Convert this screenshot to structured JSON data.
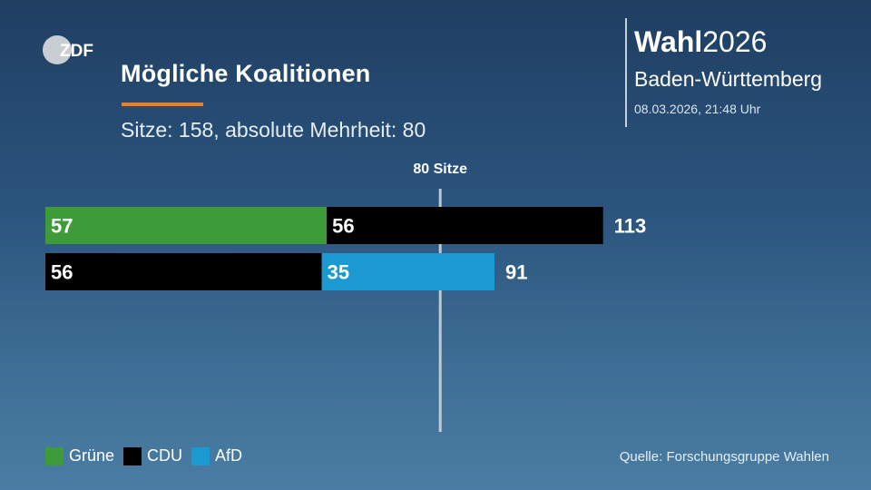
{
  "header": {
    "title": "Mögliche Koalitionen",
    "subtitle": "Sitze: 158, absolute Mehrheit: 80",
    "logo_text": "ZDF"
  },
  "election": {
    "wahl_bold": "Wahl",
    "wahl_year": "2026",
    "region": "Baden-Württemberg",
    "timestamp": "08.03.2026, 21:48 Uhr"
  },
  "colors": {
    "Grüne": "#3e9b3a",
    "CDU": "#000000",
    "AfD": "#1a9ad1",
    "accent": "#f07d1f"
  },
  "chart_data": {
    "type": "bar",
    "orientation": "horizontal",
    "stacked": true,
    "threshold": {
      "value": 80,
      "label": "80 Sitze"
    },
    "xlim": [
      0,
      158
    ],
    "rows": [
      {
        "segments": [
          {
            "party": "Grüne",
            "value": 57
          },
          {
            "party": "CDU",
            "value": 56
          }
        ],
        "total": 113
      },
      {
        "segments": [
          {
            "party": "CDU",
            "value": 56
          },
          {
            "party": "AfD",
            "value": 35
          }
        ],
        "total": 91
      }
    ],
    "legend": [
      {
        "name": "Grüne"
      },
      {
        "name": "CDU"
      },
      {
        "name": "AfD"
      }
    ],
    "legend_position": "bottom-left"
  },
  "footer": {
    "source": "Quelle: Forschungsgruppe Wahlen"
  }
}
